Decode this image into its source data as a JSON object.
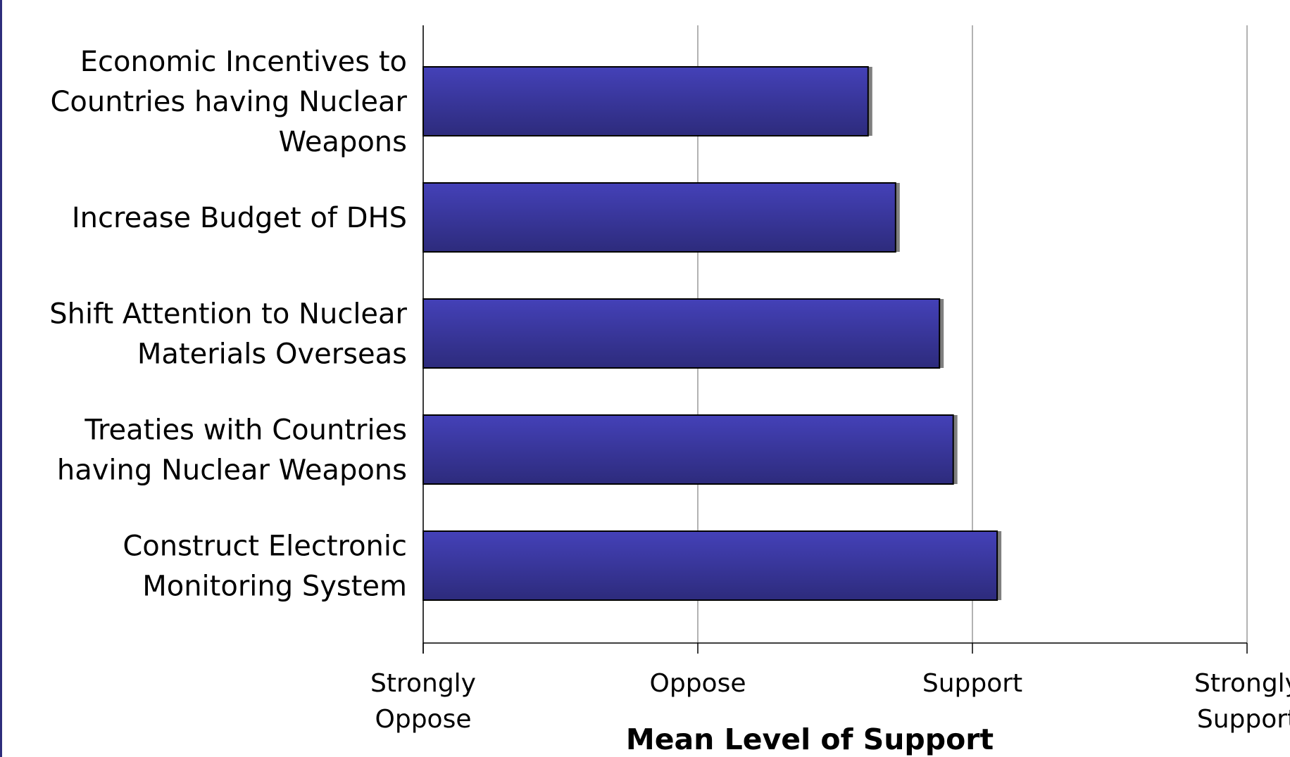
{
  "chart_data": {
    "type": "bar",
    "orientation": "horizontal",
    "title": "",
    "xlabel": "Mean Level of Support",
    "ylabel": "",
    "xlim": [
      1,
      4
    ],
    "xticks": [
      {
        "value": 1,
        "label": "Strongly Oppose"
      },
      {
        "value": 2,
        "label": "Oppose"
      },
      {
        "value": 3,
        "label": "Support"
      },
      {
        "value": 4,
        "label": "Strongly Support"
      }
    ],
    "categories": [
      "Economic Incentives to Countries having Nuclear Weapons",
      "Increase Budget of DHS",
      "Shift Attention to Nuclear Materials Overseas",
      "Treaties with Countries having Nuclear Weapons",
      "Construct Electronic Monitoring System"
    ],
    "category_lines": [
      [
        "Economic Incentives to",
        "Countries having Nuclear",
        "Weapons"
      ],
      [
        "Increase Budget of DHS"
      ],
      [
        "Shift Attention to Nuclear",
        "Materials Overseas"
      ],
      [
        "Treaties with Countries",
        "having Nuclear Weapons"
      ],
      [
        "Construct Electronic",
        "Monitoring System"
      ]
    ],
    "values": [
      2.62,
      2.72,
      2.88,
      2.93,
      3.09
    ],
    "grid": true,
    "legend": "none",
    "colors": {
      "bar_top": "#4441b8",
      "bar_bottom": "#2d2b7c",
      "bar_outline": "#000000",
      "bar_shadow": "#7f7f7f",
      "grid": "#808080",
      "axis": "#000000",
      "frame_edge": "#2e2d7c"
    }
  }
}
